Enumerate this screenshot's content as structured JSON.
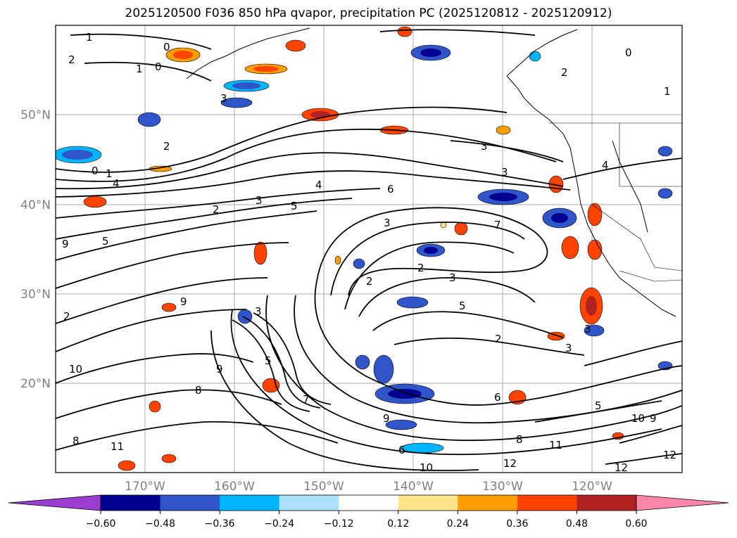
{
  "title": "2025120500 F036 850 hPa qvapor, precipitation PC (2025120812 - 2025120912)",
  "lat_labels": [
    "50°N",
    "40°N",
    "30°N",
    "20°N"
  ],
  "lon_labels": [
    "170°W",
    "160°W",
    "150°W",
    "140°W",
    "130°W",
    "120°W"
  ],
  "colorbar": {
    "ticks": [
      "−0.60",
      "−0.48",
      "−0.36",
      "−0.24",
      "−0.12",
      "0.12",
      "0.24",
      "0.36",
      "0.48",
      "0.60"
    ],
    "colors": [
      "#9a3dd0",
      "#000091",
      "#2f55c8",
      "#00b4ff",
      "#ade0fa",
      "#ffffff",
      "#ffe48c",
      "#ff9e00",
      "#ff4400",
      "#b02222",
      "#ff86a9"
    ]
  },
  "contour_labels": [
    "1",
    "2",
    "1",
    "0",
    "0",
    "3",
    "0",
    "2",
    "1",
    "3",
    "0",
    "1",
    "4",
    "2",
    "3",
    "2",
    "5",
    "4",
    "6",
    "3",
    "3",
    "7",
    "3",
    "5",
    "9",
    "5",
    "9",
    "2",
    "3",
    "5",
    "2",
    "3",
    "9",
    "8",
    "10",
    "7",
    "2",
    "9",
    "6",
    "8",
    "11",
    "6",
    "10",
    "12",
    "8",
    "11",
    "12",
    "12",
    "5",
    "3",
    "4",
    "10",
    "9",
    "2"
  ]
}
